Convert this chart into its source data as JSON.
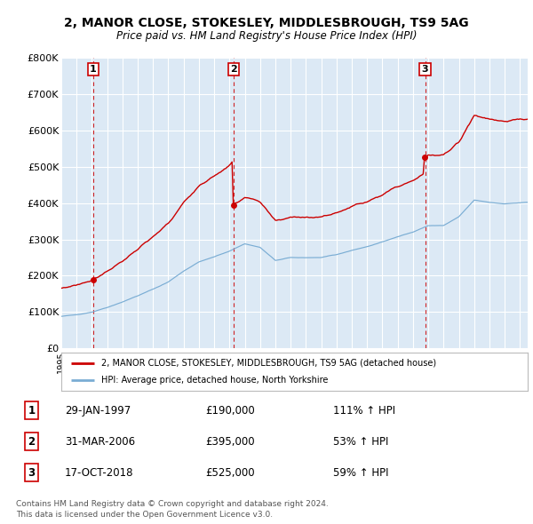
{
  "title": "2, MANOR CLOSE, STOKESLEY, MIDDLESBROUGH, TS9 5AG",
  "subtitle": "Price paid vs. HM Land Registry's House Price Index (HPI)",
  "sale1_date": "29-JAN-1997",
  "sale1_price": 190000,
  "sale1_pct": "111%",
  "sale1_year": 1997.08,
  "sale2_date": "31-MAR-2006",
  "sale2_price": 395000,
  "sale2_pct": "53%",
  "sale2_year": 2006.25,
  "sale3_date": "17-OCT-2018",
  "sale3_price": 525000,
  "sale3_pct": "59%",
  "sale3_year": 2018.79,
  "ylim": [
    0,
    800000
  ],
  "yticks": [
    0,
    100000,
    200000,
    300000,
    400000,
    500000,
    600000,
    700000,
    800000
  ],
  "xlim_start": 1995.0,
  "xlim_end": 2025.5,
  "red_line_color": "#cc0000",
  "blue_line_color": "#7aadd4",
  "vline_color": "#cc0000",
  "background_color": "#dce9f5",
  "grid_color": "#ffffff",
  "legend_label_red": "2, MANOR CLOSE, STOKESLEY, MIDDLESBROUGH, TS9 5AG (detached house)",
  "legend_label_blue": "HPI: Average price, detached house, North Yorkshire",
  "footer1": "Contains HM Land Registry data © Crown copyright and database right 2024.",
  "footer2": "This data is licensed under the Open Government Licence v3.0."
}
